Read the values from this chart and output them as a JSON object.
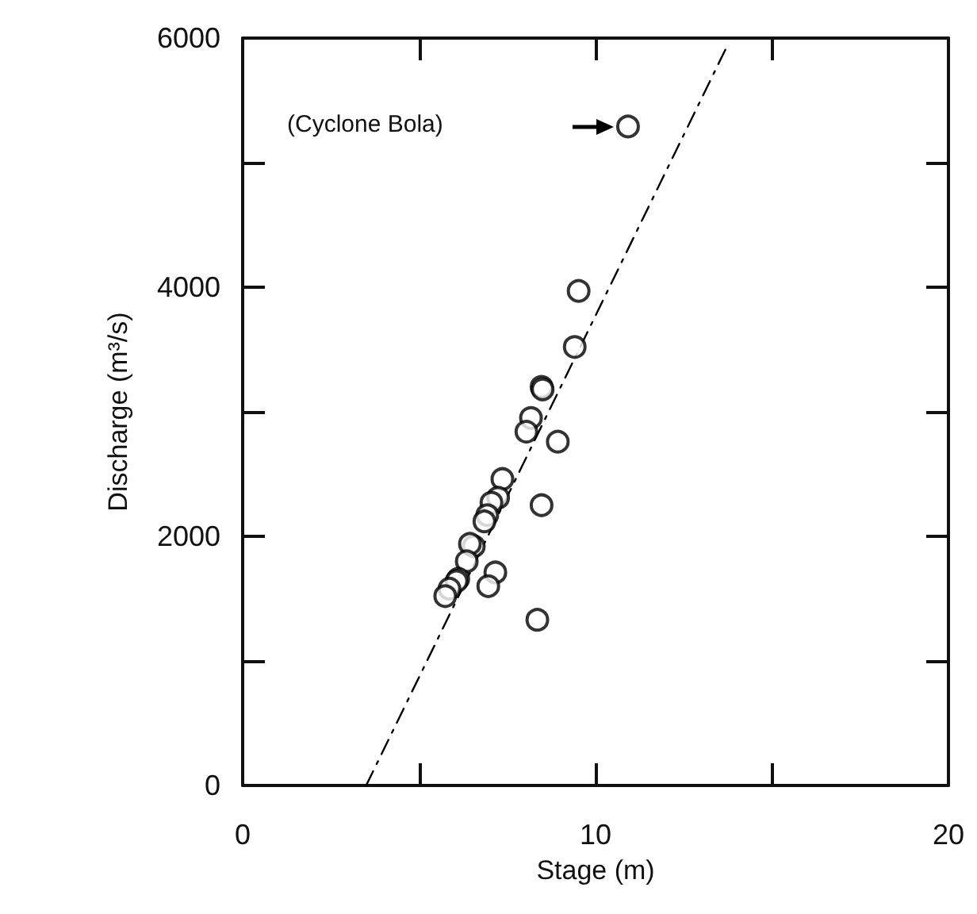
{
  "chart_data": {
    "type": "scatter",
    "xlabel": "Stage (m)",
    "ylabel": "Discharge (m³/s)",
    "xlim": [
      0,
      20
    ],
    "xticks": [
      0,
      {
        "value": 5,
        "label": null
      },
      10,
      {
        "value": 15,
        "label": null
      },
      20
    ],
    "ylim": [
      0,
      6000
    ],
    "yticks": [
      0,
      {
        "value": 1000,
        "label": null
      },
      2000,
      {
        "value": 3000,
        "label": null
      },
      4000,
      {
        "value": 5000,
        "label": null
      },
      6000
    ],
    "grid": false,
    "annotations": [
      "(Cyclone Bola)"
    ],
    "series": [
      {
        "color": "#000000",
        "marker": "circle",
        "x": [
          10.92,
          9.52,
          9.41,
          8.47,
          8.5,
          8.17,
          8.04,
          8.93,
          7.36,
          7.24,
          7.05,
          6.93,
          6.85,
          8.47,
          6.55,
          6.44,
          6.35,
          7.16,
          6.96,
          6.11,
          6.06,
          5.86,
          5.74,
          8.35
        ],
        "values": [
          5290,
          3970,
          3520,
          3200,
          3180,
          2950,
          2840,
          2760,
          2460,
          2310,
          2270,
          2170,
          2120,
          2250,
          1920,
          1940,
          1800,
          1710,
          1600,
          1660,
          1640,
          1580,
          1520,
          1330
        ]
      },
      {
        "type": "line",
        "color": "#000000",
        "marker": "none",
        "line_style": "dashed",
        "x": [
          3.5,
          13.7
        ],
        "values": [
          0,
          5920
        ]
      }
    ]
  }
}
